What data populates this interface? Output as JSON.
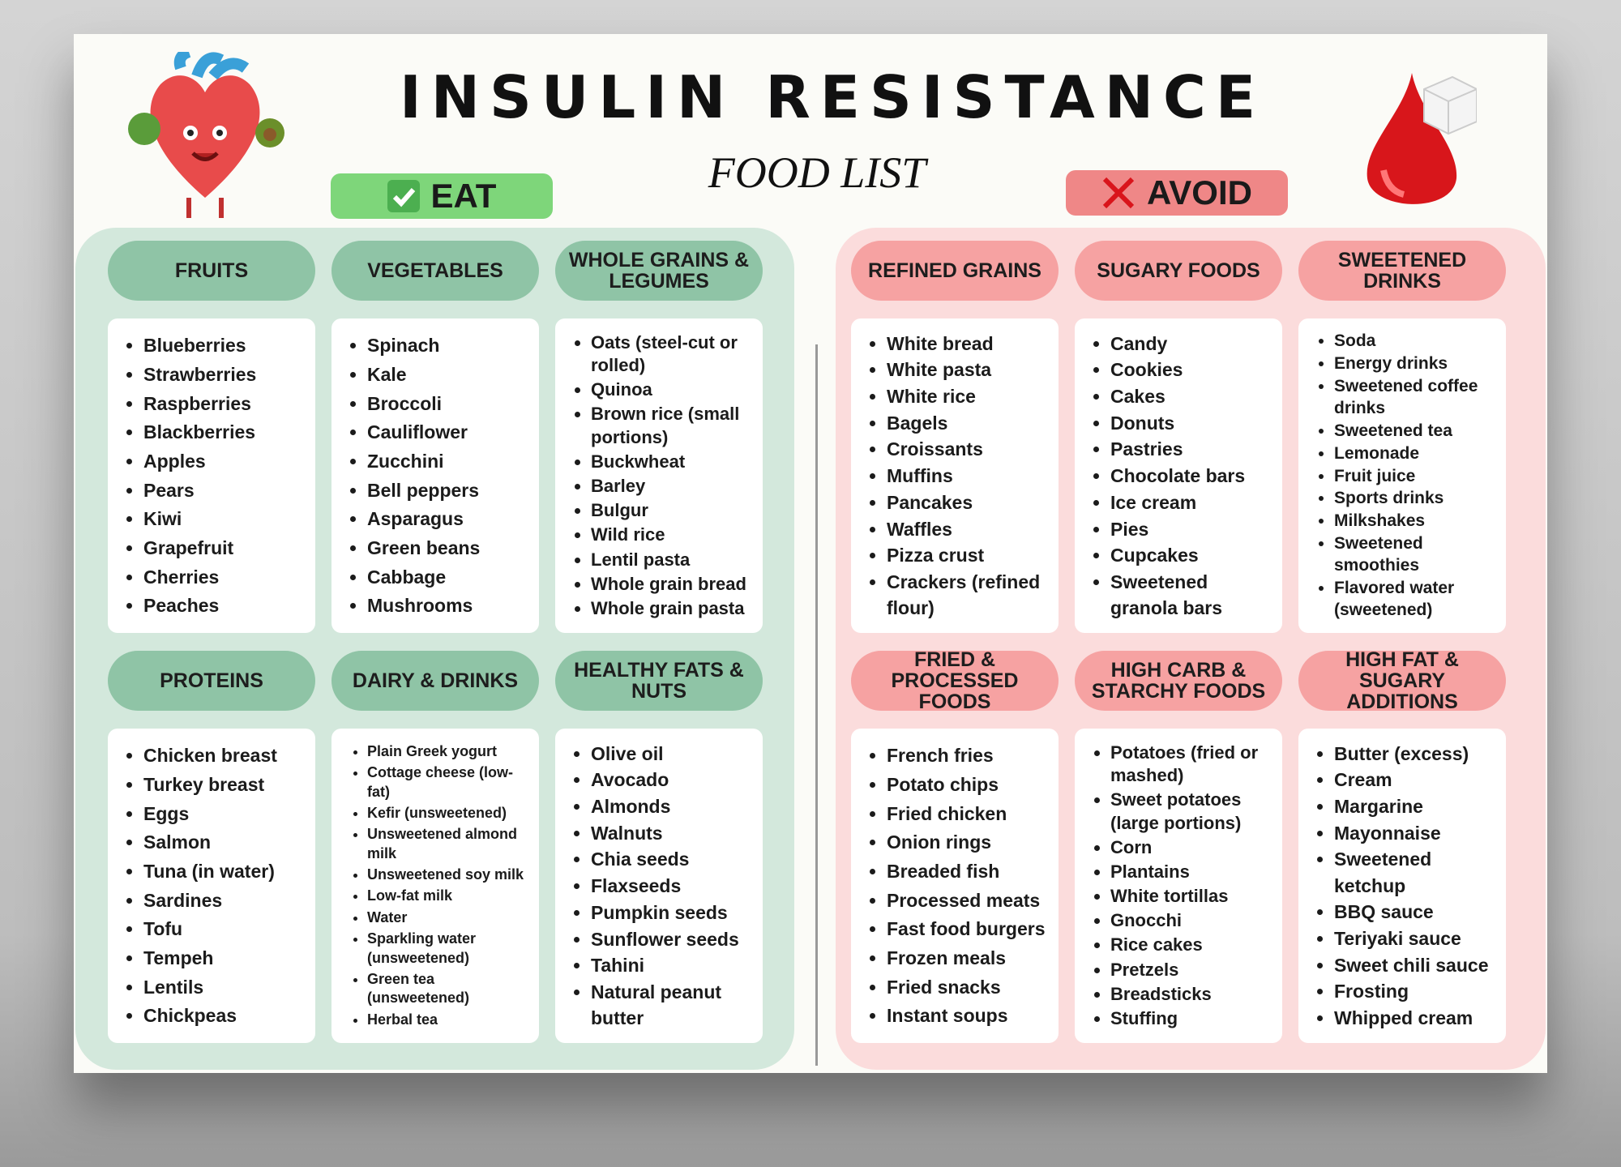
{
  "header": {
    "title": "INSULIN RESISTANCE",
    "subtitle": "FOOD LIST"
  },
  "eat": {
    "label": "EAT",
    "categories": [
      {
        "title": "FRUITS",
        "items": [
          "Blueberries",
          "Strawberries",
          "Raspberries",
          "Blackberries",
          "Apples",
          "Pears",
          "Kiwi",
          "Grapefruit",
          "Cherries",
          "Peaches"
        ]
      },
      {
        "title": "VEGETABLES",
        "items": [
          "Spinach",
          "Kale",
          "Broccoli",
          "Cauliflower",
          "Zucchini",
          "Bell peppers",
          "Asparagus",
          "Green beans",
          "Cabbage",
          "Mushrooms"
        ]
      },
      {
        "title": "WHOLE GRAINS & LEGUMES",
        "items": [
          "Oats (steel-cut or rolled)",
          "Quinoa",
          "Brown rice (small portions)",
          "Buckwheat",
          "Barley",
          "Bulgur",
          "Wild rice",
          "Lentil pasta",
          "Whole grain bread",
          "Whole grain pasta"
        ]
      },
      {
        "title": "PROTEINS",
        "items": [
          "Chicken breast",
          "Turkey breast",
          "Eggs",
          "Salmon",
          "Tuna (in water)",
          "Sardines",
          "Tofu",
          "Tempeh",
          "Lentils",
          "Chickpeas"
        ]
      },
      {
        "title": "DAIRY & DRINKS",
        "items": [
          "Plain Greek yogurt",
          "Cottage cheese (low-fat)",
          "Kefir (unsweetened)",
          "Unsweetened almond milk",
          "Unsweetened soy milk",
          "Low-fat milk",
          "Water",
          "Sparkling water (unsweetened)",
          "Green tea (unsweetened)",
          "Herbal tea"
        ]
      },
      {
        "title": "HEALTHY FATS & NUTS",
        "items": [
          "Olive oil",
          "Avocado",
          "Almonds",
          "Walnuts",
          "Chia seeds",
          "Flaxseeds",
          "Pumpkin seeds",
          "Sunflower seeds",
          "Tahini",
          "Natural peanut butter"
        ]
      }
    ]
  },
  "avoid": {
    "label": "AVOID",
    "categories": [
      {
        "title": "REFINED GRAINS",
        "items": [
          "White bread",
          "White pasta",
          "White rice",
          "Bagels",
          "Croissants",
          "Muffins",
          "Pancakes",
          "Waffles",
          "Pizza crust",
          "Crackers (refined flour)"
        ]
      },
      {
        "title": "SUGARY FOODS",
        "items": [
          "Candy",
          "Cookies",
          "Cakes",
          "Donuts",
          "Pastries",
          "Chocolate bars",
          "Ice cream",
          "Pies",
          "Cupcakes",
          "Sweetened granola bars"
        ]
      },
      {
        "title": "SWEETENED DRINKS",
        "items": [
          "Soda",
          "Energy drinks",
          "Sweetened coffee drinks",
          "Sweetened tea",
          "Lemonade",
          "Fruit juice",
          "Sports drinks",
          "Milkshakes",
          "Sweetened smoothies",
          "Flavored water (sweetened)"
        ]
      },
      {
        "title": "FRIED & PROCESSED FOODS",
        "items": [
          "French fries",
          "Potato chips",
          "Fried chicken",
          "Onion rings",
          "Breaded fish",
          "Processed meats",
          "Fast food burgers",
          "Frozen meals",
          "Fried snacks",
          "Instant soups"
        ]
      },
      {
        "title": "HIGH CARB & STARCHY FOODS",
        "items": [
          "Potatoes (fried or mashed)",
          "Sweet potatoes (large portions)",
          "Corn",
          "Plantains",
          "White tortillas",
          "Gnocchi",
          "Rice cakes",
          "Pretzels",
          "Breadsticks",
          "Stuffing"
        ]
      },
      {
        "title": "HIGH FAT & SUGARY ADDITIONS",
        "items": [
          "Butter (excess)",
          "Cream",
          "Margarine",
          "Mayonnaise",
          "Sweetened ketchup",
          "BBQ sauce",
          "Teriyaki sauce",
          "Sweet chili sauce",
          "Frosting",
          "Whipped cream"
        ]
      }
    ]
  }
}
